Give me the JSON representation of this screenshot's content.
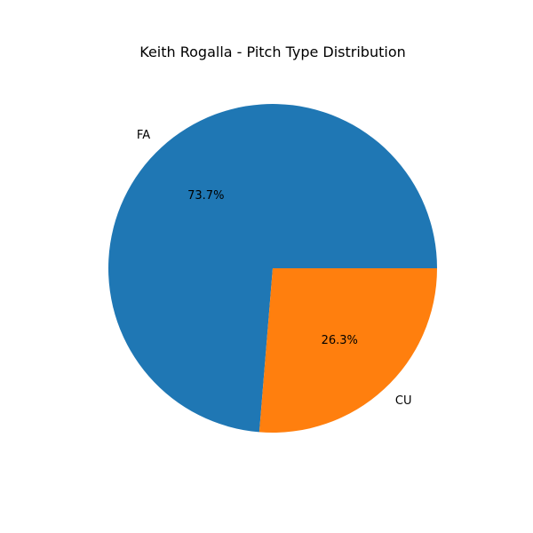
{
  "chart_data": {
    "type": "pie",
    "title": "Keith Rogalla - Pitch Type Distribution",
    "slices": [
      {
        "label": "FA",
        "value": 73.7,
        "pct_label": "73.7%",
        "color": "#1f77b4"
      },
      {
        "label": "CU",
        "value": 26.3,
        "pct_label": "26.3%",
        "color": "#ff7f0e"
      }
    ],
    "start_angle": "0 degrees (3 o'clock), counter-clockwise",
    "legend": "none"
  }
}
